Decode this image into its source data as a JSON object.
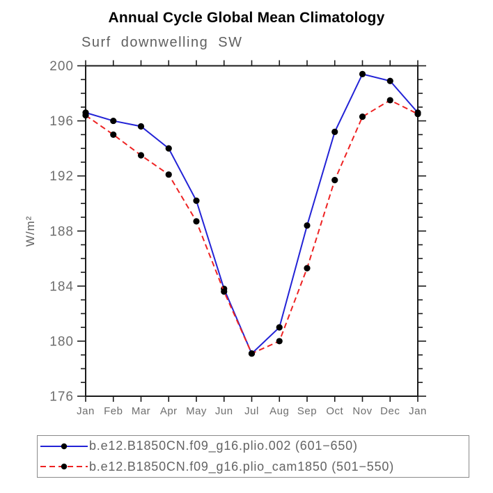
{
  "title": "Annual Cycle Global Mean Climatology",
  "subtitle": "Surf downwelling SW",
  "ylabel": "W/m²",
  "colors": {
    "axis": "#1a1a1a",
    "tick_labels": "#6e6e6e",
    "series_blue": "#2222d6",
    "series_red": "#ee2222",
    "marker": "#000000",
    "title_text": "#000000",
    "secondary_text": "#5f5f5f"
  },
  "chart_data": {
    "type": "line",
    "title": "Annual Cycle Global Mean Climatology",
    "subtitle": "Surf downwelling SW",
    "xlabel": "",
    "ylabel": "W/m²",
    "x_categories": [
      "Jan",
      "Feb",
      "Mar",
      "Apr",
      "May",
      "Jun",
      "Jul",
      "Aug",
      "Sep",
      "Oct",
      "Nov",
      "Dec",
      "Jan"
    ],
    "ylim": [
      176,
      200
    ],
    "yticks": [
      176,
      180,
      184,
      188,
      192,
      196,
      200
    ],
    "yminor_interval": 1,
    "grid": "off",
    "legend_position": "bottom",
    "series": [
      {
        "name": "b.e12.B1850CN.f09_g16.plio.002 (601−650)",
        "color": "#2222d6",
        "style": "solid",
        "marker": "black-dot",
        "values": [
          196.6,
          196.0,
          195.6,
          194.0,
          190.2,
          183.8,
          179.1,
          181.0,
          188.4,
          195.2,
          199.4,
          198.9,
          196.6
        ]
      },
      {
        "name": "b.e12.B1850CN.f09_g16.plio_cam1850 (501−550)",
        "color": "#ee2222",
        "style": "dashed",
        "marker": "black-dot",
        "values": [
          196.4,
          195.0,
          193.5,
          192.1,
          188.7,
          183.6,
          179.1,
          180.0,
          185.3,
          191.7,
          196.3,
          197.5,
          196.5
        ]
      }
    ]
  }
}
